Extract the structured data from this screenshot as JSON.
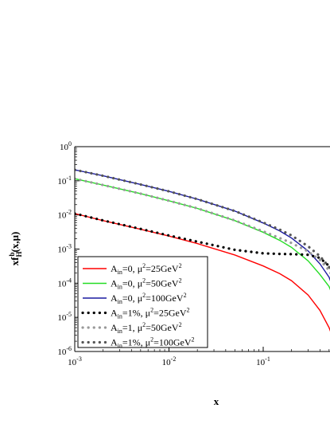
{
  "chart_data": {
    "type": "line",
    "xlabel": "x",
    "ylabel": "xf_H^b(x,μ)",
    "xscale": "log",
    "yscale": "log",
    "xlim": [
      0.001,
      0.55
    ],
    "ylim": [
      1e-06,
      1
    ],
    "x_ticks": [
      {
        "value": 0.001,
        "base": "10",
        "exp": "-3"
      },
      {
        "value": 0.01,
        "base": "10",
        "exp": "-2"
      },
      {
        "value": 0.1,
        "base": "10",
        "exp": "-1"
      }
    ],
    "y_ticks": [
      {
        "value": 1,
        "base": "10",
        "exp": "0"
      },
      {
        "value": 0.1,
        "base": "10",
        "exp": "-1"
      },
      {
        "value": 0.01,
        "base": "10",
        "exp": "-2"
      },
      {
        "value": 0.001,
        "base": "10",
        "exp": "-3"
      },
      {
        "value": 0.0001,
        "base": "10",
        "exp": "-4"
      },
      {
        "value": 1e-05,
        "base": "10",
        "exp": "-5"
      },
      {
        "value": 1e-06,
        "base": "10",
        "exp": "-6"
      }
    ],
    "legend_position": "bottom-left",
    "series": [
      {
        "name": "A_in=0, μ²=25GeV²",
        "label_parts": {
          "a": "A",
          "a_sub": "in",
          "a_val": "=0, ",
          "mu": "μ",
          "mu_sup": "2",
          "mu_val": "=25GeV",
          "unit_sup": "2"
        },
        "color": "#ff0000",
        "style": "solid",
        "x": [
          0.001,
          0.002,
          0.005,
          0.01,
          0.02,
          0.05,
          0.1,
          0.15,
          0.2,
          0.3,
          0.4,
          0.5,
          0.55
        ],
        "y": [
          0.011,
          0.0068,
          0.0038,
          0.0024,
          0.00145,
          0.00067,
          0.00032,
          0.00019,
          0.000118,
          4.5e-05,
          1.6e-05,
          5e-06,
          2.5e-06
        ]
      },
      {
        "name": "A_in=0, μ²=50GeV²",
        "label_parts": {
          "a": "A",
          "a_sub": "in",
          "a_val": "=0, ",
          "mu": "μ",
          "mu_sup": "2",
          "mu_val": "=50GeV",
          "unit_sup": "2"
        },
        "color": "#22dd22",
        "style": "solid",
        "x": [
          0.001,
          0.002,
          0.005,
          0.01,
          0.02,
          0.05,
          0.1,
          0.15,
          0.2,
          0.3,
          0.4,
          0.5,
          0.55
        ],
        "y": [
          0.115,
          0.075,
          0.042,
          0.026,
          0.0155,
          0.0068,
          0.0031,
          0.0018,
          0.00112,
          0.00045,
          0.00018,
          8e-05,
          4.2e-05
        ]
      },
      {
        "name": "A_in=0, μ²=100GeV²",
        "label_parts": {
          "a": "A",
          "a_sub": "in",
          "a_val": "=0, ",
          "mu": "μ",
          "mu_sup": "2",
          "mu_val": "=100GeV",
          "unit_sup": "2"
        },
        "color": "#1a1aa0",
        "style": "solid",
        "x": [
          0.001,
          0.002,
          0.005,
          0.01,
          0.02,
          0.05,
          0.1,
          0.15,
          0.2,
          0.3,
          0.4,
          0.5,
          0.55
        ],
        "y": [
          0.21,
          0.14,
          0.078,
          0.049,
          0.029,
          0.013,
          0.0058,
          0.0034,
          0.0021,
          0.00088,
          0.00037,
          0.00015,
          7.5e-05
        ]
      },
      {
        "name": "A_in=1%, μ²=25GeV²",
        "label_parts": {
          "a": "A",
          "a_sub": "in",
          "a_val": "=1%, ",
          "mu": "μ",
          "mu_sup": "2",
          "mu_val": "=25GeV",
          "unit_sup": "2"
        },
        "color": "#000000",
        "style": "dotted",
        "x": [
          0.001,
          0.002,
          0.005,
          0.01,
          0.02,
          0.05,
          0.1,
          0.15,
          0.2,
          0.3,
          0.4,
          0.5,
          0.55
        ],
        "y": [
          0.011,
          0.0069,
          0.0039,
          0.0025,
          0.00165,
          0.00095,
          0.00075,
          0.00072,
          0.00071,
          0.00068,
          0.00055,
          0.00032,
          0.00022
        ]
      },
      {
        "name": "A_in=1, μ²=50GeV²",
        "label_parts": {
          "a": "A",
          "a_sub": "in",
          "a_val": "=1, ",
          "mu": "μ",
          "mu_sup": "2",
          "mu_val": "=50GeV",
          "unit_sup": "2"
        },
        "color": "#999999",
        "style": "dotted",
        "x": [
          0.001,
          0.002,
          0.005,
          0.01,
          0.02,
          0.05,
          0.1,
          0.15,
          0.2,
          0.3,
          0.4,
          0.5,
          0.55
        ],
        "y": [
          0.115,
          0.075,
          0.042,
          0.026,
          0.0156,
          0.0069,
          0.0033,
          0.0021,
          0.0015,
          0.00085,
          0.00048,
          0.00024,
          0.00015
        ]
      },
      {
        "name": "A_in=1%, μ²=100GeV²",
        "label_parts": {
          "a": "A",
          "a_sub": "in",
          "a_val": "=1%, ",
          "mu": "μ",
          "mu_sup": "2",
          "mu_val": "=100GeV",
          "unit_sup": "2"
        },
        "color": "#555555",
        "style": "dotted",
        "x": [
          0.001,
          0.002,
          0.005,
          0.01,
          0.02,
          0.05,
          0.1,
          0.15,
          0.2,
          0.3,
          0.4,
          0.5,
          0.55
        ],
        "y": [
          0.21,
          0.14,
          0.078,
          0.049,
          0.029,
          0.013,
          0.006,
          0.0037,
          0.0025,
          0.0012,
          0.00062,
          0.0003,
          0.0002
        ]
      }
    ]
  }
}
